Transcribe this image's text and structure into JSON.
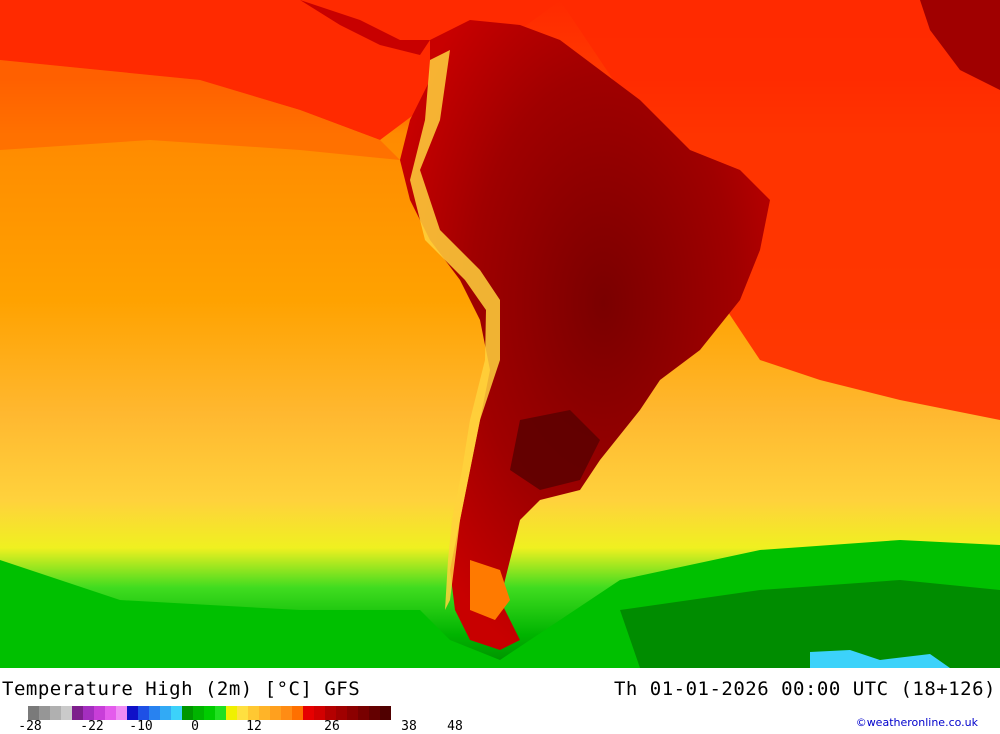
{
  "header": {
    "title_left": "Temperature High (2m) [°C] GFS",
    "title_right": "Th 01-01-2026 00:00 UTC (18+126)"
  },
  "legend": {
    "ticks": [
      "-28",
      "-22",
      "-10",
      "0",
      "12",
      "26",
      "38",
      "48"
    ],
    "colors": [
      "#7a7a7a",
      "#969696",
      "#b0b0b0",
      "#cacaca",
      "#7d1f8c",
      "#a42ebf",
      "#c83ed8",
      "#e45cec",
      "#f08cf4",
      "#1010c8",
      "#1e50e6",
      "#2882f0",
      "#32aaf5",
      "#3cd2fa",
      "#009600",
      "#00b400",
      "#00cc00",
      "#20e020",
      "#f0f000",
      "#ffe040",
      "#ffc832",
      "#ffb428",
      "#ffa01e",
      "#ff8c14",
      "#ff7000",
      "#e60000",
      "#d20000",
      "#b40000",
      "#a00000",
      "#8c0000",
      "#780000",
      "#640000",
      "#500000"
    ]
  },
  "colors": {
    "ocean_cold": "#00c800",
    "ocean_cool": "#ffe040",
    "ocean_mild": "#ffa500",
    "ocean_warm": "#ff4000",
    "land_hot": "#a00000",
    "land_hottest": "#5a0000",
    "andes": "#ffd23c"
  },
  "credit": "©weatheronline.co.uk"
}
